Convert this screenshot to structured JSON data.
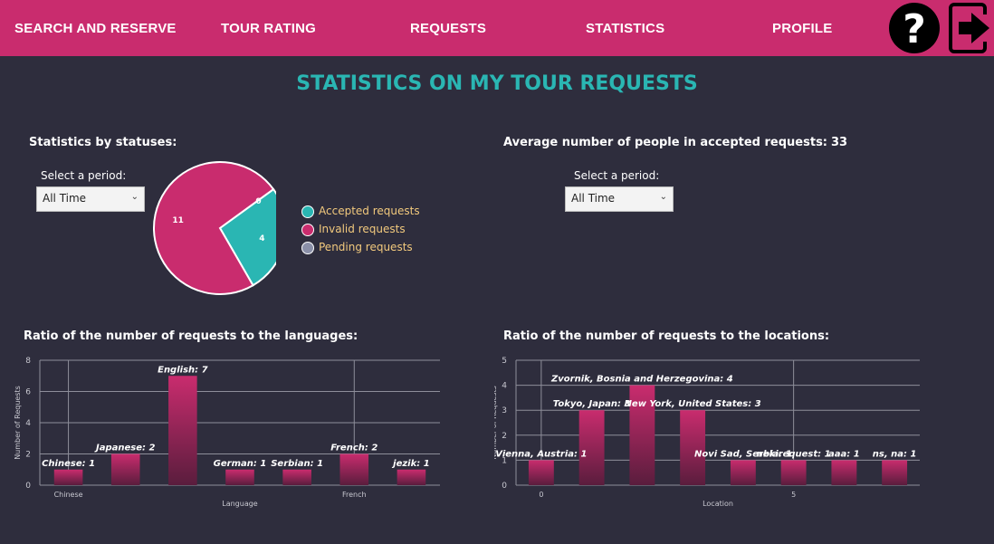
{
  "nav": {
    "items": [
      "SEARCH AND RESERVE",
      "TOUR RATING",
      "REQUESTS",
      "STATISTICS",
      "PROFILE"
    ],
    "help_icon": "question-mark-icon",
    "logout_icon": "logout-arrow-icon"
  },
  "page_title": "STATISTICS ON MY TOUR REQUESTS",
  "status_section": {
    "title": "Statistics by statuses:",
    "period_label": "Select a period:",
    "period_value": "All Time"
  },
  "average_section": {
    "title": "Average number of people in accepted requests:",
    "value": "33",
    "period_label": "Select a period:",
    "period_value": "All Time"
  },
  "languages_section": {
    "title": "Ratio of the number of requests to the languages:"
  },
  "locations_section": {
    "title": "Ratio of the number of requests to the locations:"
  },
  "colors": {
    "nav_bg": "#c92c6e",
    "bg": "#2e2d3d",
    "title_teal": "#2ab6b3",
    "accepted": "#2ab6b3",
    "invalid": "#c92c6e",
    "pending": "#8a8fa8",
    "bar_top": "#c92c6e",
    "bar_bottom": "#5a1d3d"
  },
  "chart_data": [
    {
      "type": "pie",
      "labels": [
        "Accepted requests",
        "Invalid requests",
        "Pending requests"
      ],
      "values": [
        4,
        11,
        0
      ],
      "data_labels": [
        "4",
        "11",
        "0"
      ],
      "legend_position": "right"
    },
    {
      "type": "bar",
      "categories": [
        "Chinese",
        "Japanese",
        "English",
        "German",
        "Serbian",
        "French",
        "jezik"
      ],
      "values": [
        1,
        2,
        7,
        1,
        1,
        2,
        1
      ],
      "data_labels": [
        "Chinese: 1",
        "Japanese: 2",
        "English: 7",
        "German: 1",
        "Serbian: 1",
        "French: 2",
        "jezik: 1"
      ],
      "x_tick_labels": [
        {
          "label": "Chinese",
          "index": 0
        },
        {
          "label": "French",
          "index": 5
        }
      ],
      "xlabel": "Language",
      "ylabel": "Number of Requests",
      "ylim": [
        0,
        8
      ],
      "yticks": [
        0,
        2,
        4,
        6,
        8
      ],
      "grid": true
    },
    {
      "type": "bar",
      "categories": [
        "Vienna, Austria",
        "Tokyo, Japan",
        "Zvornik, Bosnia and Herzegovina",
        "New York, United States",
        "Novi Sad, Serbia",
        "nekirequest",
        "aaa",
        "ns, na"
      ],
      "values": [
        1,
        3,
        4,
        3,
        1,
        1,
        1,
        1
      ],
      "data_labels": [
        "Vienna, Austria: 1",
        "Tokyo, Japan: 3",
        "Zvornik, Bosnia and Herzegovina: 4",
        "New York, United States: 3",
        "Novi Sad, Serbia: 1",
        "nekirequest: 1",
        "aaa: 1",
        "ns, na: 1"
      ],
      "x_tick_labels": [
        {
          "label": "0",
          "index": 0
        },
        {
          "label": "5",
          "index": 5
        }
      ],
      "xlabel": "Location",
      "ylabel": "Number of Requests",
      "ylim": [
        0,
        5
      ],
      "yticks": [
        0,
        1,
        2,
        3,
        4,
        5
      ],
      "grid": true
    }
  ]
}
